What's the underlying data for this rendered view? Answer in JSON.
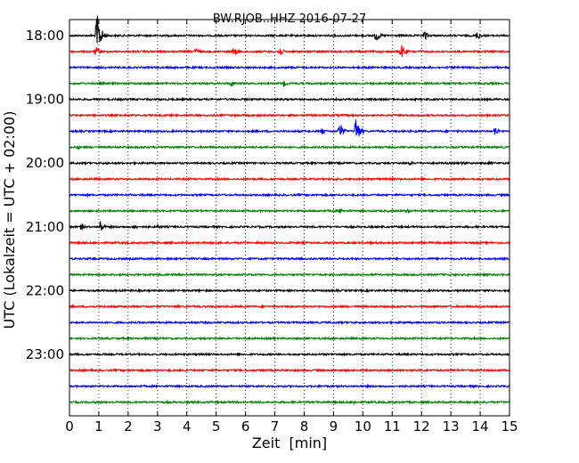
{
  "chart_data": {
    "type": "line",
    "title": "BW.RJOB..HHZ 2016-07-27",
    "xlabel": "Zeit  [min]",
    "ylabel": "UTC (Lokalzeit = UTC + 02:00)",
    "xlim": [
      0,
      15
    ],
    "x_ticks": [
      0,
      1,
      2,
      3,
      4,
      5,
      6,
      7,
      8,
      9,
      10,
      11,
      12,
      13,
      14,
      15
    ],
    "x_tick_labels": [
      "0",
      "1",
      "2",
      "3",
      "4",
      "5",
      "6",
      "7",
      "8",
      "9",
      "10",
      "11",
      "12",
      "13",
      "14",
      "15"
    ],
    "y_tick_labels": [
      "18:00",
      "19:00",
      "20:00",
      "21:00",
      "22:00",
      "23:00"
    ],
    "y_tick_rows": [
      0,
      4,
      8,
      12,
      16,
      20
    ],
    "grid": "vertical dotted",
    "trace_colors": [
      "#000000",
      "#ff0000",
      "#0000ff",
      "#008000"
    ],
    "row_minutes": 15,
    "rows": [
      {
        "start": "18:00",
        "color": "#000000",
        "bursts": [
          {
            "x": 0.93,
            "amp": 1.0
          },
          {
            "x": 10.45,
            "amp": 0.28
          },
          {
            "x": 12.1,
            "amp": 0.22
          },
          {
            "x": 13.9,
            "amp": 0.2
          }
        ]
      },
      {
        "start": "18:15",
        "color": "#ff0000",
        "bursts": [
          {
            "x": 0.9,
            "amp": 0.22
          },
          {
            "x": 4.3,
            "amp": 0.16
          },
          {
            "x": 5.6,
            "amp": 0.22
          },
          {
            "x": 7.15,
            "amp": 0.22
          },
          {
            "x": 11.3,
            "amp": 0.35
          }
        ]
      },
      {
        "start": "18:30",
        "color": "#0000ff",
        "bursts": [
          {
            "x": 10.1,
            "amp": 0.1
          }
        ]
      },
      {
        "start": "18:45",
        "color": "#008000",
        "bursts": [
          {
            "x": 5.5,
            "amp": 0.14
          },
          {
            "x": 7.3,
            "amp": 0.14
          }
        ]
      },
      {
        "start": "19:00",
        "color": "#000000",
        "bursts": []
      },
      {
        "start": "19:15",
        "color": "#ff0000",
        "bursts": []
      },
      {
        "start": "19:30",
        "color": "#0000ff",
        "bursts": [
          {
            "x": 8.6,
            "amp": 0.14
          },
          {
            "x": 9.2,
            "amp": 0.4
          },
          {
            "x": 9.75,
            "amp": 0.65
          },
          {
            "x": 14.5,
            "amp": 0.22
          }
        ]
      },
      {
        "start": "19:45",
        "color": "#008000",
        "bursts": [
          {
            "x": 0.3,
            "amp": 0.1
          },
          {
            "x": 3.1,
            "amp": 0.1
          }
        ]
      },
      {
        "start": "20:00",
        "color": "#000000",
        "bursts": [
          {
            "x": 11.6,
            "amp": 0.1
          },
          {
            "x": 13.4,
            "amp": 0.14
          },
          {
            "x": 14.3,
            "amp": 0.12
          }
        ]
      },
      {
        "start": "20:15",
        "color": "#ff0000",
        "bursts": [
          {
            "x": 9.1,
            "amp": 0.1
          }
        ]
      },
      {
        "start": "20:30",
        "color": "#0000ff",
        "bursts": []
      },
      {
        "start": "20:45",
        "color": "#008000",
        "bursts": [
          {
            "x": 9.2,
            "amp": 0.14
          },
          {
            "x": 11.5,
            "amp": 0.1
          }
        ]
      },
      {
        "start": "21:00",
        "color": "#000000",
        "bursts": [
          {
            "x": 0.4,
            "amp": 0.16
          },
          {
            "x": 1.05,
            "amp": 0.28
          },
          {
            "x": 2.2,
            "amp": 0.14
          },
          {
            "x": 3.0,
            "amp": 0.1
          }
        ]
      },
      {
        "start": "21:15",
        "color": "#ff0000",
        "bursts": []
      },
      {
        "start": "21:30",
        "color": "#0000ff",
        "bursts": []
      },
      {
        "start": "21:45",
        "color": "#008000",
        "bursts": []
      },
      {
        "start": "22:00",
        "color": "#000000",
        "bursts": []
      },
      {
        "start": "22:15",
        "color": "#ff0000",
        "bursts": [
          {
            "x": 3.7,
            "amp": 0.08
          }
        ]
      },
      {
        "start": "22:30",
        "color": "#0000ff",
        "bursts": []
      },
      {
        "start": "22:45",
        "color": "#008000",
        "bursts": []
      },
      {
        "start": "23:00",
        "color": "#000000",
        "bursts": []
      },
      {
        "start": "23:15",
        "color": "#ff0000",
        "bursts": []
      },
      {
        "start": "23:30",
        "color": "#0000ff",
        "bursts": []
      },
      {
        "start": "23:45",
        "color": "#008000",
        "bursts": [
          {
            "x": 9.7,
            "amp": 0.1
          }
        ]
      }
    ]
  }
}
